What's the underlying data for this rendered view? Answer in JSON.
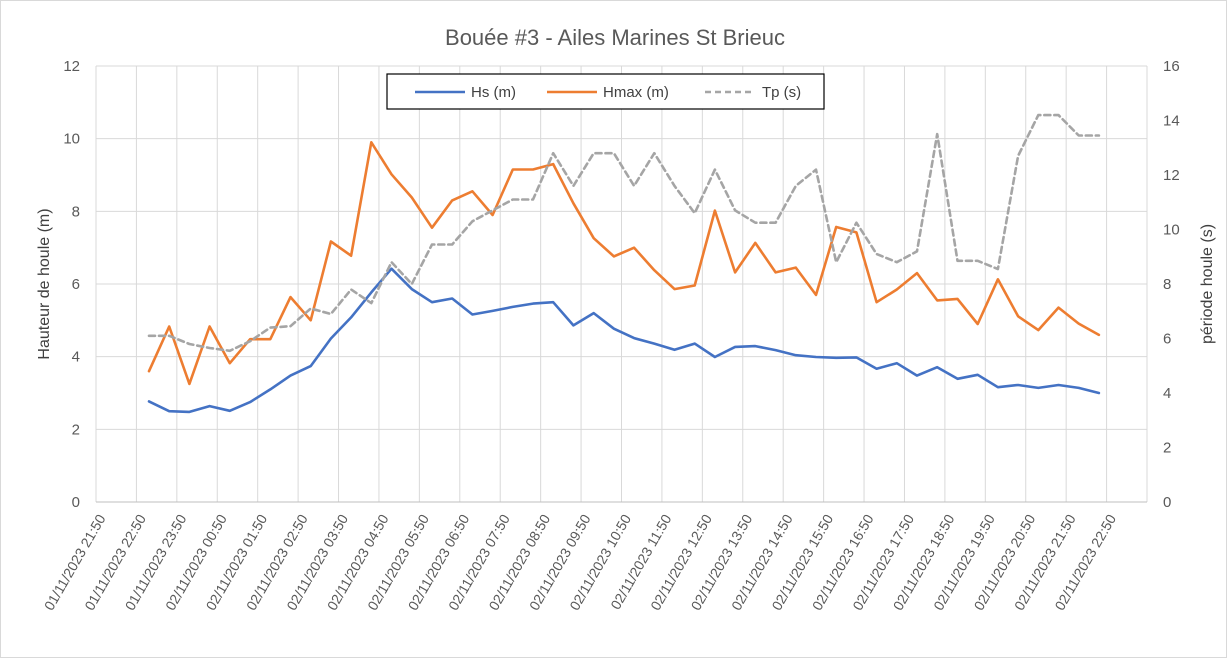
{
  "chart_data": {
    "type": "line",
    "title": "Bouée #3 - Ailes Marines St Brieuc",
    "ylabel": "Hauteur de houle (m)",
    "y2label": "période houle (s)",
    "ylim": [
      0,
      12
    ],
    "y2lim": [
      0,
      16
    ],
    "yticks": [
      "0",
      "2",
      "4",
      "6",
      "8",
      "10",
      "12"
    ],
    "y2ticks": [
      "0",
      "2",
      "4",
      "6",
      "8",
      "10",
      "12",
      "14",
      "16"
    ],
    "x_tick_labels": [
      "01/11/2023 21:50",
      "01/11/2023 22:50",
      "01/11/2023 23:50",
      "02/11/2023 00:50",
      "02/11/2023 01:50",
      "02/11/2023 02:50",
      "02/11/2023 03:50",
      "02/11/2023 04:50",
      "02/11/2023 05:50",
      "02/11/2023 06:50",
      "02/11/2023 07:50",
      "02/11/2023 08:50",
      "02/11/2023 09:50",
      "02/11/2023 10:50",
      "02/11/2023 11:50",
      "02/11/2023 12:50",
      "02/11/2023 13:50",
      "02/11/2023 14:50",
      "02/11/2023 15:50",
      "02/11/2023 16:50",
      "02/11/2023 17:50",
      "02/11/2023 18:50",
      "02/11/2023 19:50",
      "02/11/2023 20:50",
      "02/11/2023 21:50",
      "02/11/2023 22:50"
    ],
    "legend_position": "top-center",
    "grid": true,
    "series": [
      {
        "name": "Hs (m)",
        "axis": "left",
        "color": "#4472C4",
        "style": "solid",
        "values": [
          2.77,
          2.5,
          2.48,
          2.64,
          2.51,
          2.75,
          3.1,
          3.48,
          3.74,
          4.5,
          5.08,
          5.77,
          6.42,
          5.86,
          5.5,
          5.6,
          5.16,
          5.26,
          5.37,
          5.46,
          5.5,
          4.86,
          5.2,
          4.77,
          4.51,
          4.36,
          4.19,
          4.36,
          3.99,
          4.27,
          4.29,
          4.18,
          4.04,
          3.99,
          3.97,
          3.98,
          3.67,
          3.82,
          3.48,
          3.71,
          3.39,
          3.5,
          3.16,
          3.22,
          3.14,
          3.22,
          3.14,
          3.0
        ]
      },
      {
        "name": "Hmax (m)",
        "axis": "left",
        "color": "#ED7D31",
        "style": "solid",
        "values": [
          3.6,
          4.83,
          3.25,
          4.83,
          3.82,
          4.48,
          4.48,
          5.64,
          5.0,
          7.17,
          6.78,
          9.9,
          9.02,
          8.38,
          7.55,
          8.3,
          8.55,
          7.9,
          9.15,
          9.15,
          9.3,
          8.22,
          7.26,
          6.76,
          7.0,
          6.38,
          5.86,
          5.96,
          8.02,
          6.32,
          7.13,
          6.32,
          6.45,
          5.7,
          7.57,
          7.42,
          5.5,
          5.85,
          6.3,
          5.55,
          5.59,
          4.9,
          6.13,
          5.11,
          4.73,
          5.35,
          4.91,
          4.6
        ]
      },
      {
        "name": "Tp (s)",
        "axis": "right",
        "color": "#A5A5A5",
        "style": "dashed",
        "values": [
          6.1,
          6.1,
          5.8,
          5.65,
          5.55,
          5.9,
          6.4,
          6.45,
          7.1,
          6.9,
          7.8,
          7.3,
          8.8,
          8.0,
          9.45,
          9.45,
          10.3,
          10.7,
          11.1,
          11.1,
          12.8,
          11.6,
          12.8,
          12.8,
          11.6,
          12.8,
          11.6,
          10.6,
          12.2,
          10.7,
          10.25,
          10.25,
          11.6,
          12.2,
          8.8,
          10.25,
          9.1,
          8.8,
          9.2,
          13.5,
          8.85,
          8.85,
          8.55,
          12.7,
          14.2,
          14.2,
          13.45,
          13.45
        ]
      }
    ]
  }
}
